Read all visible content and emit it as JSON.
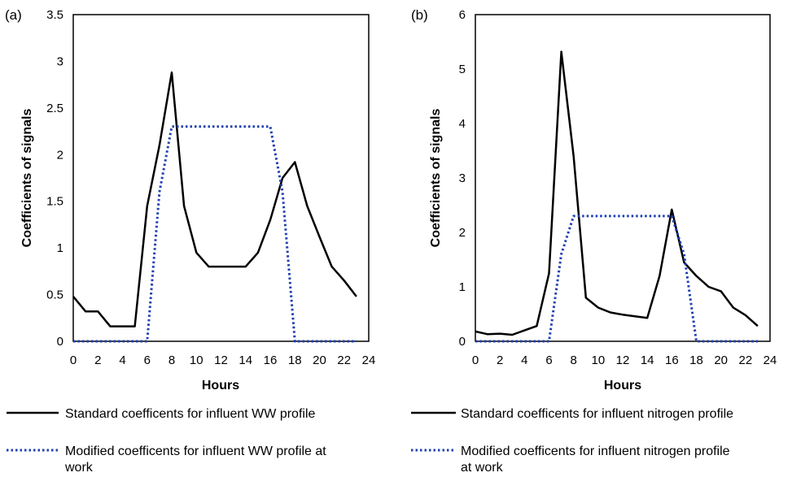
{
  "chart_data": [
    {
      "type": "line",
      "panel_label": "(a)",
      "xlabel": "Hours",
      "ylabel": "Coefficients of signals",
      "xlim": [
        0,
        24
      ],
      "ylim": [
        0,
        3.5
      ],
      "xticks": [
        "0",
        "2",
        "4",
        "6",
        "8",
        "10",
        "12",
        "14",
        "16",
        "18",
        "20",
        "22",
        "24"
      ],
      "yticks": [
        "0",
        "0.5",
        "1",
        "1.5",
        "2",
        "2.5",
        "3",
        "3.5"
      ],
      "grid": false,
      "legend_position": "bottom",
      "series": [
        {
          "name": "Standard coefficents for influent WW profile",
          "style": "solid",
          "color": "#000000",
          "x": [
            0,
            1,
            2,
            3,
            4,
            5,
            6,
            7,
            8,
            9,
            10,
            11,
            12,
            13,
            14,
            15,
            16,
            17,
            18,
            19,
            20,
            21,
            22,
            23
          ],
          "y": [
            0.48,
            0.32,
            0.32,
            0.16,
            0.16,
            0.16,
            1.45,
            2.1,
            2.88,
            1.45,
            0.95,
            0.8,
            0.8,
            0.8,
            0.8,
            0.95,
            1.3,
            1.75,
            1.92,
            1.45,
            1.12,
            0.8,
            0.65,
            0.48
          ]
        },
        {
          "name": "Modified coefficents for influent WW profile at work",
          "style": "dotted",
          "color": "#1f3fb0",
          "x": [
            0,
            1,
            2,
            3,
            4,
            5,
            6,
            7,
            8,
            9,
            10,
            11,
            12,
            13,
            14,
            15,
            16,
            17,
            18,
            19,
            20,
            21,
            22,
            23
          ],
          "y": [
            0,
            0,
            0,
            0,
            0,
            0,
            0,
            1.6,
            2.3,
            2.3,
            2.3,
            2.3,
            2.3,
            2.3,
            2.3,
            2.3,
            2.3,
            1.6,
            0,
            0,
            0,
            0,
            0,
            0
          ]
        }
      ]
    },
    {
      "type": "line",
      "panel_label": "(b)",
      "xlabel": "Hours",
      "ylabel": "Coefficients of signals",
      "xlim": [
        0,
        24
      ],
      "ylim": [
        0,
        6
      ],
      "xticks": [
        "0",
        "2",
        "4",
        "6",
        "8",
        "10",
        "12",
        "14",
        "16",
        "18",
        "20",
        "22",
        "24"
      ],
      "yticks": [
        "0",
        "1",
        "2",
        "3",
        "4",
        "5",
        "6"
      ],
      "grid": false,
      "legend_position": "bottom",
      "series": [
        {
          "name": "Standard coefficents for influent nitrogen profile",
          "style": "solid",
          "color": "#000000",
          "x": [
            0,
            1,
            2,
            3,
            4,
            5,
            6,
            7,
            8,
            9,
            10,
            11,
            12,
            13,
            14,
            15,
            16,
            17,
            18,
            19,
            20,
            21,
            22,
            23
          ],
          "y": [
            0.18,
            0.13,
            0.14,
            0.12,
            0.2,
            0.28,
            1.25,
            5.32,
            3.4,
            0.8,
            0.62,
            0.53,
            0.49,
            0.46,
            0.43,
            1.2,
            2.42,
            1.45,
            1.2,
            1.0,
            0.92,
            0.62,
            0.48,
            0.28
          ]
        },
        {
          "name": "Modified coefficents for influent nitrogen profile at work",
          "style": "dotted",
          "color": "#1f3fb0",
          "x": [
            0,
            1,
            2,
            3,
            4,
            5,
            6,
            7,
            8,
            9,
            10,
            11,
            12,
            13,
            14,
            15,
            16,
            17,
            18,
            19,
            20,
            21,
            22,
            23
          ],
          "y": [
            0,
            0,
            0,
            0,
            0,
            0,
            0,
            1.6,
            2.3,
            2.3,
            2.3,
            2.3,
            2.3,
            2.3,
            2.3,
            2.3,
            2.3,
            1.6,
            0,
            0,
            0,
            0,
            0,
            0
          ]
        }
      ]
    }
  ],
  "legends": [
    {
      "line1": "Standard coefficents for influent WW profile",
      "line2_a": "Modified coefficents for influent WW profile at",
      "line2_b": "work"
    },
    {
      "line1": "Standard coefficents for influent nitrogen profile",
      "line2_a": "Modified coefficents for influent nitrogen profile",
      "line2_b": "at work"
    }
  ]
}
